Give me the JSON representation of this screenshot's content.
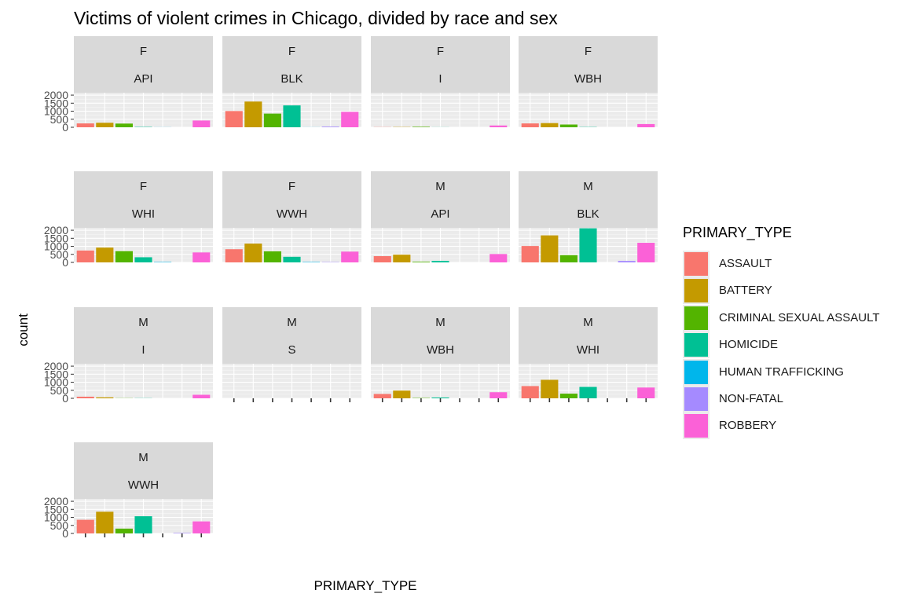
{
  "chart_data": {
    "type": "bar",
    "title": "Victims of violent crimes in Chicago, divided by race and sex",
    "xlabel": "PRIMARY_TYPE",
    "ylabel": "count",
    "ylim": [
      0,
      2150
    ],
    "yticks": [
      0,
      500,
      1000,
      1500,
      2000
    ],
    "grid": true,
    "legend": {
      "title": "PRIMARY_TYPE",
      "placement": "right",
      "entries": [
        {
          "label": "ASSAULT",
          "color": "#F8766D"
        },
        {
          "label": "BATTERY",
          "color": "#C49A00"
        },
        {
          "label": "CRIMINAL SEXUAL ASSAULT",
          "color": "#53B400"
        },
        {
          "label": "HOMICIDE",
          "color": "#00C094"
        },
        {
          "label": "HUMAN TRAFFICKING",
          "color": "#00B6EB"
        },
        {
          "label": "NON-FATAL",
          "color": "#A58AFF"
        },
        {
          "label": "ROBBERY",
          "color": "#FB61D7"
        }
      ]
    },
    "categories": [
      "ASSAULT",
      "BATTERY",
      "CRIMINAL SEXUAL ASSAULT",
      "HOMICIDE",
      "HUMAN TRAFFICKING",
      "NON-FATAL",
      "ROBBERY"
    ],
    "panels": [
      {
        "sex": "F",
        "race": "API",
        "values": [
          240,
          280,
          230,
          20,
          5,
          0,
          420
        ]
      },
      {
        "sex": "F",
        "race": "BLK",
        "values": [
          1010,
          1600,
          850,
          1360,
          5,
          40,
          960
        ]
      },
      {
        "sex": "F",
        "race": "I",
        "values": [
          10,
          15,
          30,
          5,
          0,
          0,
          110
        ]
      },
      {
        "sex": "F",
        "race": "WBH",
        "values": [
          240,
          260,
          170,
          15,
          0,
          0,
          200
        ]
      },
      {
        "sex": "F",
        "race": "WHI",
        "values": [
          740,
          920,
          700,
          320,
          25,
          0,
          620
        ]
      },
      {
        "sex": "F",
        "race": "WWH",
        "values": [
          820,
          1170,
          690,
          350,
          25,
          20,
          670
        ]
      },
      {
        "sex": "M",
        "race": "API",
        "values": [
          390,
          480,
          40,
          90,
          0,
          0,
          520
        ]
      },
      {
        "sex": "M",
        "race": "BLK",
        "values": [
          1020,
          1680,
          450,
          2120,
          0,
          90,
          1220
        ]
      },
      {
        "sex": "M",
        "race": "I",
        "values": [
          100,
          60,
          10,
          10,
          0,
          0,
          220
        ]
      },
      {
        "sex": "M",
        "race": "S",
        "values": [
          0,
          0,
          0,
          0,
          0,
          0,
          0
        ]
      },
      {
        "sex": "M",
        "race": "WBH",
        "values": [
          270,
          480,
          20,
          50,
          0,
          0,
          380
        ]
      },
      {
        "sex": "M",
        "race": "WHI",
        "values": [
          760,
          1150,
          290,
          710,
          0,
          0,
          670
        ]
      },
      {
        "sex": "M",
        "race": "WWH",
        "values": [
          850,
          1350,
          300,
          1070,
          0,
          30,
          750
        ]
      }
    ]
  }
}
